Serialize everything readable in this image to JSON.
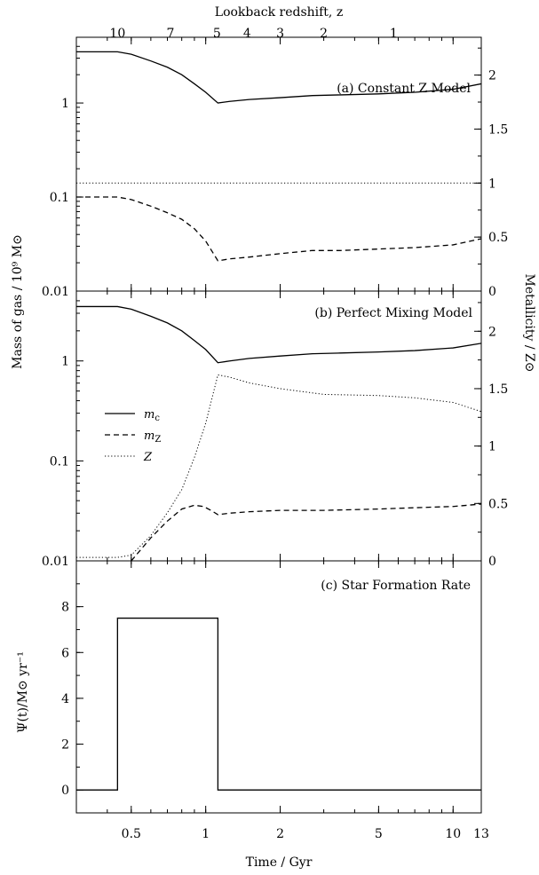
{
  "top_axis": {
    "label": "Lookback redshift, z",
    "ticks": [
      {
        "z": 10,
        "t": 0.44,
        "label": "10"
      },
      {
        "z": 7,
        "t": 0.72,
        "label": "7"
      },
      {
        "z": 5,
        "t": 1.11,
        "label": "5"
      },
      {
        "z": 4,
        "t": 1.47,
        "label": "4"
      },
      {
        "z": 3,
        "t": 2.0,
        "label": "3"
      },
      {
        "z": 2,
        "t": 3.0,
        "label": "2"
      },
      {
        "z": 1,
        "t": 5.75,
        "label": "1"
      }
    ]
  },
  "x_axis": {
    "label": "Time / Gyr",
    "scale": "log",
    "range": [
      0.3,
      13
    ],
    "ticks": [
      {
        "v": 0.5,
        "label": "0.5"
      },
      {
        "v": 1,
        "label": "1"
      },
      {
        "v": 2,
        "label": "2"
      },
      {
        "v": 5,
        "label": "5"
      },
      {
        "v": 10,
        "label": "10"
      },
      {
        "v": 13,
        "label": "13"
      }
    ]
  },
  "left_axis_label": "Mass of gas / 10⁹ M⊙",
  "right_axis_label": "Metallicity / Z⊙",
  "sfr_axis_label": "Ψ(t)/M⊙ yr⁻¹",
  "legend": [
    {
      "name": "m_c",
      "main": "m",
      "sub": "c",
      "style": "solid"
    },
    {
      "name": "m_Z",
      "main": "m",
      "sub": "Z",
      "style": "dashed"
    },
    {
      "name": "Z",
      "main": "Z",
      "sub": "",
      "style": "dotted"
    }
  ],
  "chart_data": [
    {
      "type": "line",
      "title": "(a) Constant Z Model",
      "x_scale": "log",
      "y_left": {
        "scale": "log",
        "range": [
          0.01,
          5
        ],
        "ticks": [
          {
            "v": 0.01,
            "label": "0.01"
          },
          {
            "v": 0.1,
            "label": "0.1"
          },
          {
            "v": 1,
            "label": "1"
          }
        ]
      },
      "y_right": {
        "range": [
          0,
          2.35
        ],
        "ticks": [
          {
            "v": 0,
            "label": "0"
          },
          {
            "v": 0.5,
            "label": "0.5"
          },
          {
            "v": 1,
            "label": "1"
          },
          {
            "v": 1.5,
            "label": "1.5"
          },
          {
            "v": 2,
            "label": "2"
          }
        ]
      },
      "series": [
        {
          "name": "m_c",
          "axis": "left",
          "style": "solid",
          "x": [
            0.3,
            0.44,
            0.5,
            0.6,
            0.7,
            0.8,
            0.9,
            1.0,
            1.12,
            1.25,
            1.5,
            2.0,
            2.7,
            3.5,
            5.0,
            7.0,
            10.0,
            13.0
          ],
          "y": [
            3.5,
            3.5,
            3.3,
            2.8,
            2.4,
            2.0,
            1.6,
            1.3,
            1.0,
            1.04,
            1.09,
            1.14,
            1.2,
            1.22,
            1.25,
            1.3,
            1.4,
            1.6
          ]
        },
        {
          "name": "m_Z",
          "axis": "left",
          "style": "dashed",
          "x": [
            0.3,
            0.44,
            0.5,
            0.6,
            0.7,
            0.8,
            0.9,
            1.0,
            1.12,
            1.25,
            1.5,
            2.0,
            2.7,
            3.5,
            5.0,
            7.0,
            10.0,
            13.0
          ],
          "y": [
            0.1,
            0.1,
            0.094,
            0.08,
            0.068,
            0.058,
            0.046,
            0.034,
            0.021,
            0.022,
            0.023,
            0.025,
            0.027,
            0.027,
            0.028,
            0.029,
            0.031,
            0.036
          ]
        },
        {
          "name": "Z",
          "axis": "right",
          "style": "dotted",
          "x": [
            0.3,
            13.0
          ],
          "y": [
            1.0,
            1.0
          ]
        }
      ]
    },
    {
      "type": "line",
      "title": "(b) Perfect Mixing Model",
      "x_scale": "log",
      "y_left": {
        "scale": "log",
        "range": [
          0.01,
          5
        ],
        "ticks": [
          {
            "v": 0.01,
            "label": "0.01"
          },
          {
            "v": 0.1,
            "label": "0.1"
          },
          {
            "v": 1,
            "label": "1"
          }
        ]
      },
      "y_right": {
        "range": [
          0,
          2.35
        ],
        "ticks": [
          {
            "v": 0,
            "label": "0"
          },
          {
            "v": 0.5,
            "label": "0.5"
          },
          {
            "v": 1,
            "label": "1"
          },
          {
            "v": 1.5,
            "label": "1.5"
          },
          {
            "v": 2,
            "label": "2"
          }
        ]
      },
      "series": [
        {
          "name": "m_c",
          "axis": "left",
          "style": "solid",
          "x": [
            0.3,
            0.44,
            0.5,
            0.6,
            0.7,
            0.8,
            0.9,
            1.0,
            1.12,
            1.25,
            1.5,
            2.0,
            2.7,
            3.5,
            5.0,
            7.0,
            10.0,
            13.0
          ],
          "y": [
            3.5,
            3.5,
            3.3,
            2.8,
            2.4,
            2.0,
            1.6,
            1.3,
            0.96,
            1.0,
            1.06,
            1.12,
            1.18,
            1.2,
            1.23,
            1.27,
            1.35,
            1.5
          ]
        },
        {
          "name": "m_Z",
          "axis": "left",
          "style": "dashed",
          "x": [
            0.5,
            0.6,
            0.7,
            0.8,
            0.9,
            0.98,
            1.05,
            1.12,
            1.25,
            1.5,
            2.0,
            3.0,
            5.0,
            7.0,
            10.0,
            13.0
          ],
          "y": [
            0.01,
            0.017,
            0.025,
            0.033,
            0.036,
            0.035,
            0.032,
            0.029,
            0.03,
            0.031,
            0.032,
            0.032,
            0.033,
            0.034,
            0.035,
            0.037
          ]
        },
        {
          "name": "Z",
          "axis": "right",
          "style": "dotted",
          "x": [
            0.3,
            0.44,
            0.5,
            0.6,
            0.7,
            0.8,
            0.9,
            1.0,
            1.12,
            1.25,
            1.5,
            2.0,
            3.0,
            5.0,
            7.0,
            10.0,
            13.0
          ],
          "y": [
            0.03,
            0.03,
            0.05,
            0.22,
            0.42,
            0.62,
            0.9,
            1.2,
            1.62,
            1.6,
            1.55,
            1.5,
            1.45,
            1.44,
            1.42,
            1.38,
            1.3
          ]
        }
      ]
    },
    {
      "type": "line",
      "title": "(c) Star Formation Rate",
      "x_scale": "log",
      "y_left": {
        "scale": "linear",
        "range": [
          -1,
          10
        ],
        "ticks": [
          {
            "v": 0,
            "label": "0"
          },
          {
            "v": 2,
            "label": "2"
          },
          {
            "v": 4,
            "label": "4"
          },
          {
            "v": 6,
            "label": "6"
          },
          {
            "v": 8,
            "label": "8"
          }
        ]
      },
      "series": [
        {
          "name": "SFR",
          "axis": "left",
          "style": "solid",
          "x": [
            0.3,
            0.44,
            0.44,
            1.12,
            1.12,
            13.0
          ],
          "y": [
            0,
            0,
            7.5,
            7.5,
            0,
            0
          ]
        }
      ]
    }
  ]
}
